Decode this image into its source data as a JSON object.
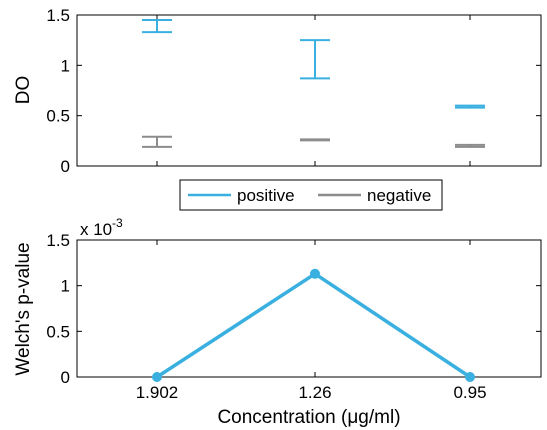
{
  "chart_data": [
    {
      "type": "errorbar",
      "categories": [
        "1.902",
        "1.26",
        "0.95"
      ],
      "ylabel": "DO",
      "ylim": [
        0,
        1.5
      ],
      "yticks": [
        0,
        0.5,
        1,
        1.5
      ],
      "ytick_labels": [
        "0",
        "0.5",
        "1",
        "1.5"
      ],
      "grid": false,
      "legend": {
        "placement": "bottom-center",
        "entries": [
          "positive",
          "negative"
        ]
      },
      "series": [
        {
          "name": "positive",
          "color": "#39b0e0",
          "low": [
            1.33,
            0.87,
            0.58
          ],
          "high": [
            1.45,
            1.25,
            0.6
          ]
        },
        {
          "name": "negative",
          "color": "#8c8c8c",
          "low": [
            0.19,
            0.255,
            0.19
          ],
          "high": [
            0.29,
            0.265,
            0.21
          ]
        }
      ]
    },
    {
      "type": "line",
      "categories": [
        "1.902",
        "1.26",
        "0.95"
      ],
      "xlabel": "Concentration (μg/ml)",
      "ylabel": "Welch's p-value",
      "ylim": [
        0,
        0.0015
      ],
      "yticks": [
        0,
        0.0005,
        0.001,
        0.0015
      ],
      "ytick_labels": [
        "0",
        "0.5",
        "1",
        "1.5"
      ],
      "yscale_label": "x 10",
      "yscale_exponent": "-3",
      "grid": false,
      "series": [
        {
          "color": "#39b0e0",
          "values": [
            0.0,
            0.00113,
            0.0
          ]
        }
      ]
    }
  ],
  "legend_labels": {
    "positive": "positive",
    "negative": "negative"
  }
}
